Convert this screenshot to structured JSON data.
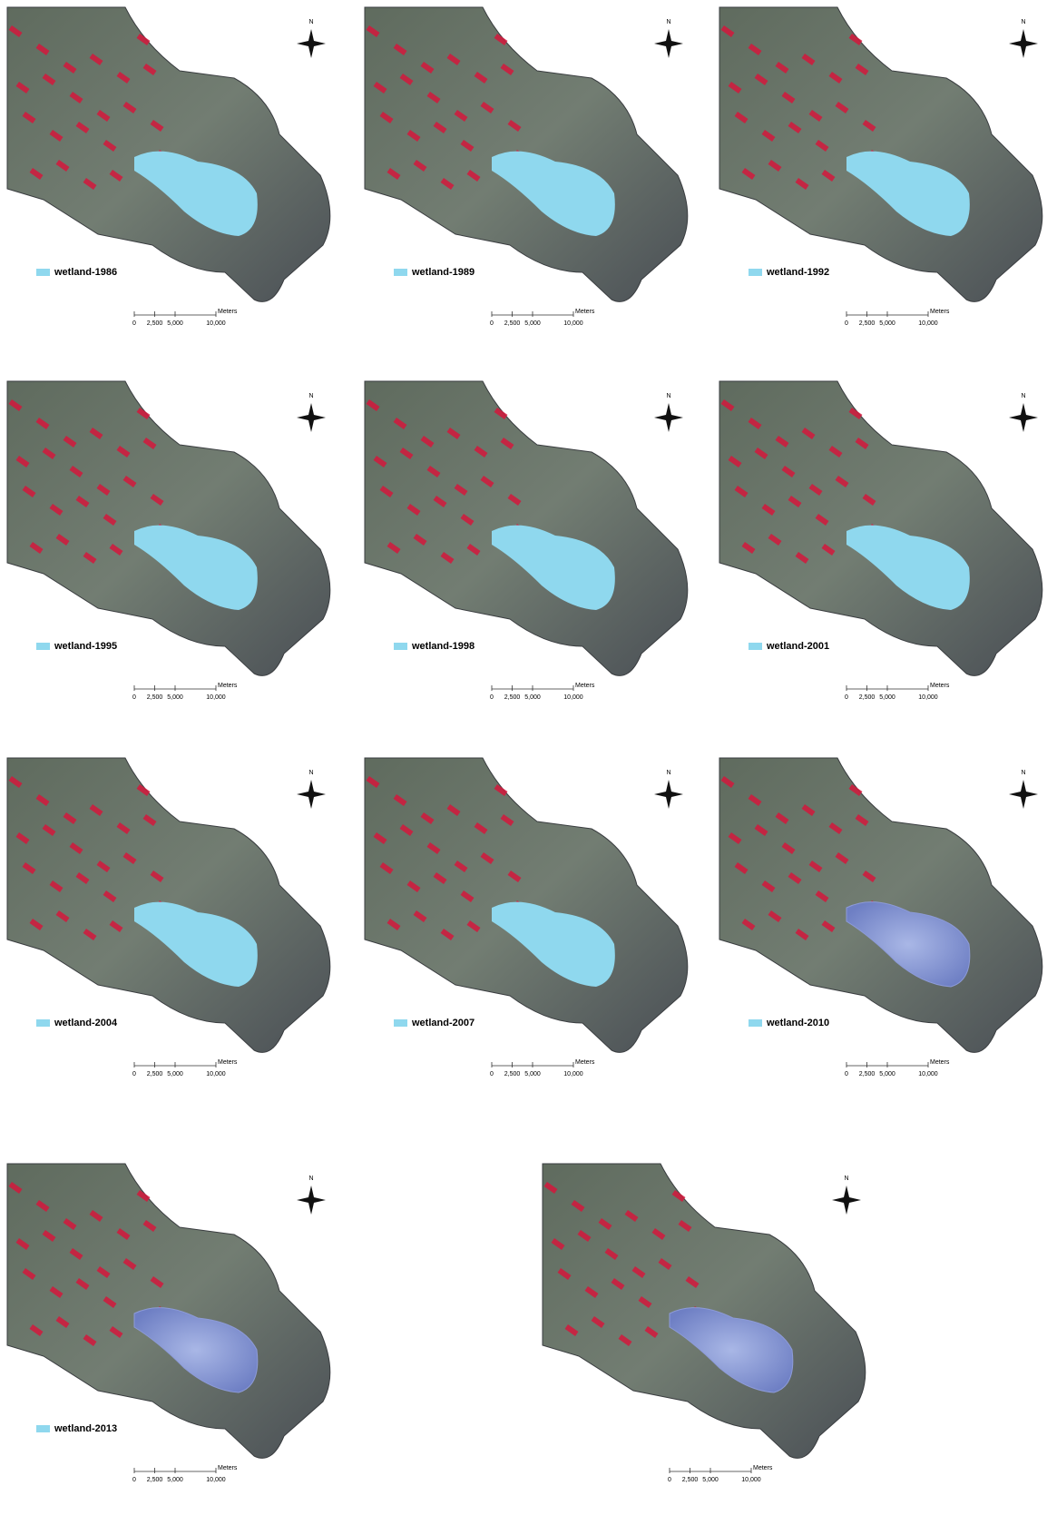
{
  "panels": [
    {
      "legend": "wetland-1986"
    },
    {
      "legend": "wetland-1989"
    },
    {
      "legend": "wetland-1992"
    },
    {
      "legend": "wetland-1995"
    },
    {
      "legend": "wetland-1998"
    },
    {
      "legend": "wetland-2001"
    },
    {
      "legend": "wetland-2004"
    },
    {
      "legend": "wetland-2007"
    },
    {
      "legend": "wetland-2010"
    },
    {
      "legend": "wetland-2013"
    },
    {}
  ],
  "north": "N",
  "scale_bar": {
    "unit": "Meters",
    "ticks": [
      0,
      {
        "value": 2500,
        "label": "2,500"
      },
      {
        "value": 5000,
        "label": "5,000"
      },
      {
        "value": 10000,
        "label": "10,000"
      }
    ]
  },
  "swatch_color": "#8fd8ee"
}
